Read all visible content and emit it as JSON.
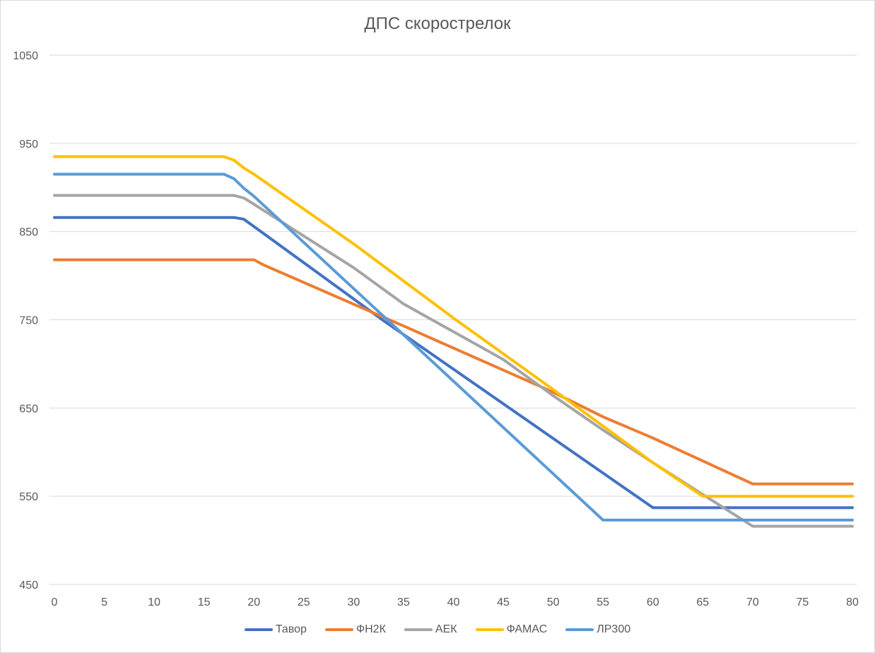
{
  "chart_data": {
    "type": "line",
    "title": "ДПС скорострелок",
    "xlabel": "",
    "ylabel": "",
    "xlim": [
      0,
      80
    ],
    "ylim": [
      450,
      1050
    ],
    "x_ticks": [
      "0",
      "5",
      "10",
      "15",
      "20",
      "25",
      "30",
      "35",
      "40",
      "45",
      "50",
      "55",
      "60",
      "65",
      "70",
      "75",
      "80"
    ],
    "y_ticks": [
      "450",
      "550",
      "650",
      "750",
      "850",
      "950",
      "1050"
    ],
    "grid": "horizontal",
    "legend": "bottom",
    "series": [
      {
        "name": "Тавор",
        "color": "#4472c4",
        "points": [
          [
            0,
            866
          ],
          [
            18,
            866
          ],
          [
            19,
            864
          ],
          [
            33,
            749
          ],
          [
            60,
            537
          ],
          [
            80,
            537
          ]
        ]
      },
      {
        "name": "ФН2К",
        "color": "#ed7d31",
        "points": [
          [
            0,
            818
          ],
          [
            20,
            818
          ],
          [
            21,
            812
          ],
          [
            35,
            743
          ],
          [
            45,
            693
          ],
          [
            50,
            668
          ],
          [
            55,
            640
          ],
          [
            60,
            616
          ],
          [
            65,
            590
          ],
          [
            70,
            564
          ],
          [
            80,
            564
          ]
        ]
      },
      {
        "name": "АЕК",
        "color": "#a5a5a5",
        "points": [
          [
            0,
            891
          ],
          [
            18,
            891
          ],
          [
            19,
            888
          ],
          [
            20,
            881
          ],
          [
            25,
            845
          ],
          [
            30,
            809
          ],
          [
            35,
            768
          ],
          [
            45,
            705
          ],
          [
            50,
            664
          ],
          [
            55,
            625
          ],
          [
            60,
            588
          ],
          [
            65,
            552
          ],
          [
            70,
            516
          ],
          [
            80,
            516
          ]
        ]
      },
      {
        "name": "ФАМАС",
        "color": "#ffc000",
        "points": [
          [
            0,
            935
          ],
          [
            17,
            935
          ],
          [
            18,
            931
          ],
          [
            19,
            922
          ],
          [
            20,
            915
          ],
          [
            30,
            836
          ],
          [
            40,
            752
          ],
          [
            50,
            671
          ],
          [
            60,
            588
          ],
          [
            65,
            550
          ],
          [
            80,
            550
          ]
        ]
      },
      {
        "name": "ЛР300",
        "color": "#5b9bd5",
        "points": [
          [
            0,
            915
          ],
          [
            17,
            915
          ],
          [
            18,
            910
          ],
          [
            19,
            899
          ],
          [
            20,
            890
          ],
          [
            35,
            733
          ],
          [
            55,
            523
          ],
          [
            80,
            523
          ]
        ]
      }
    ]
  }
}
